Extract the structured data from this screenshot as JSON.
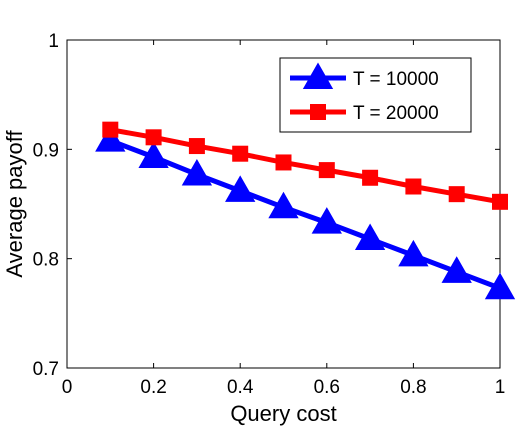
{
  "chart_data": {
    "type": "line",
    "title": "",
    "xlabel": "Query cost",
    "ylabel": "Average payoff",
    "xlim": [
      0,
      1
    ],
    "ylim": [
      0.7,
      1
    ],
    "x_ticks": [
      0,
      0.2,
      0.4,
      0.6,
      0.8,
      1
    ],
    "x_tick_labels": [
      "0",
      "0.2",
      "0.4",
      "0.6",
      "0.8",
      "1"
    ],
    "y_ticks": [
      0.7,
      0.8,
      0.9,
      1
    ],
    "y_tick_labels": [
      "0.7",
      "0.8",
      "0.9",
      "1"
    ],
    "grid": false,
    "legend_position": "top-right",
    "x": [
      0.1,
      0.2,
      0.3,
      0.4,
      0.5,
      0.6,
      0.7,
      0.8,
      0.9,
      1.0
    ],
    "series": [
      {
        "name": "T = 10000",
        "color": "#0000ff",
        "marker": "triangle",
        "values": [
          0.908,
          0.893,
          0.877,
          0.862,
          0.847,
          0.833,
          0.818,
          0.803,
          0.788,
          0.773
        ]
      },
      {
        "name": "T = 20000",
        "color": "#ff0000",
        "marker": "square",
        "values": [
          0.918,
          0.911,
          0.903,
          0.896,
          0.888,
          0.881,
          0.874,
          0.866,
          0.859,
          0.852
        ]
      }
    ]
  }
}
